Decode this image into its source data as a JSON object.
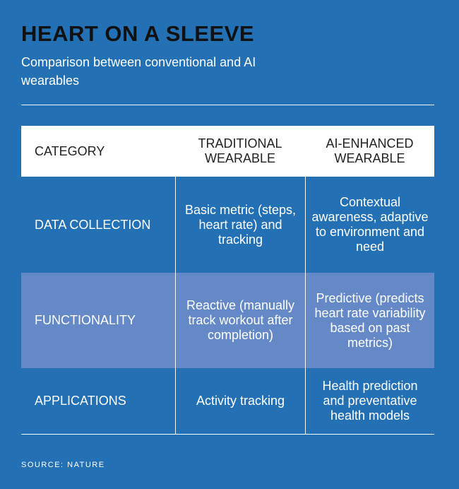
{
  "title": "HEART ON A SLEEVE",
  "subtitle": "Comparison between conventional and AI wearables",
  "colors": {
    "background": "#2371b4",
    "highlight_row": "#6489c6",
    "header_row": "#ffffff"
  },
  "table": {
    "headers": [
      "CATEGORY",
      "TRADITIONAL WEARABLE",
      "AI-ENHANCED WEARABLE"
    ],
    "rows": [
      [
        "DATA COLLECTION",
        "Basic metric (steps, heart rate) and tracking",
        "Contextual awareness, adaptive to environment and need"
      ],
      [
        "FUNCTIONALITY",
        "Reactive (manually track workout after completion)",
        "Predictive (predicts heart rate variability based on past metrics)"
      ],
      [
        "APPLICATIONS",
        "Activity tracking",
        "Health prediction and preventative health models"
      ]
    ]
  },
  "source": "SOURCE: NATURE"
}
